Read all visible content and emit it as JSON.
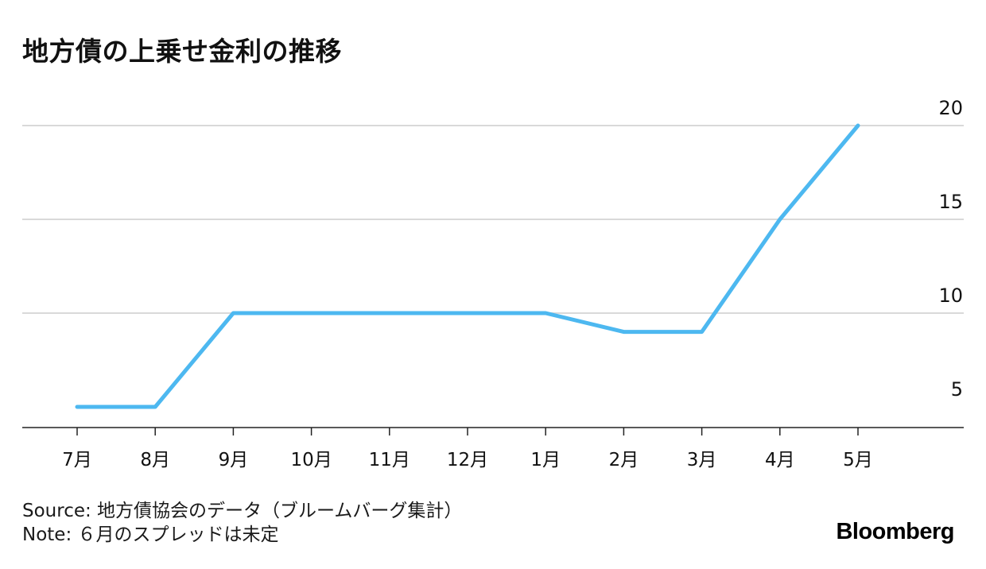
{
  "chart_data": {
    "type": "line",
    "title": "地方債の上乗せ金利の推移",
    "categories": [
      "7月",
      "8月",
      "9月",
      "10月",
      "11月",
      "12月",
      "1月",
      "2月",
      "3月",
      "4月",
      "5月"
    ],
    "series": [
      {
        "values": [
          5,
          5,
          10,
          10,
          10,
          10,
          10,
          9,
          9,
          15,
          20
        ],
        "color": "#4db8f0"
      }
    ],
    "y_ticks": [
      5,
      10,
      15,
      20
    ],
    "ylim": [
      4,
      21.5
    ],
    "grid": true,
    "y_axis_side": "right",
    "xlabel": "",
    "ylabel": ""
  },
  "footer": {
    "source": "Source: 地方債協会のデータ（ブルームバーグ集計）",
    "note": "Note: ６月のスプレッドは未定"
  },
  "brand": "Bloomberg"
}
